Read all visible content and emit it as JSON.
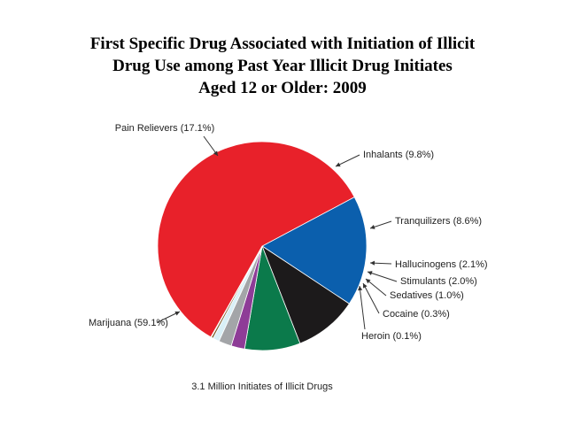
{
  "chart_data": {
    "type": "pie",
    "title_lines": [
      "First Specific Drug Associated with Initiation of Illicit",
      "Drug Use among Past Year Illicit Drug Initiates",
      "Aged 12 or Older: 2009"
    ],
    "caption": "3.1 Million Initiates of Illicit Drugs",
    "slices": [
      {
        "name": "Pain Relievers",
        "value": 17.1,
        "label": "Pain Relievers (17.1%)",
        "color": "#0b5fad"
      },
      {
        "name": "Inhalants",
        "value": 9.8,
        "label": "Inhalants (9.8%)",
        "color": "#1c1a1b"
      },
      {
        "name": "Tranquilizers",
        "value": 8.6,
        "label": "Tranquilizers (8.6%)",
        "color": "#0b7a4b"
      },
      {
        "name": "Hallucinogens",
        "value": 2.1,
        "label": "Hallucinogens (2.1%)",
        "color": "#8e3c97"
      },
      {
        "name": "Stimulants",
        "value": 2.0,
        "label": "Stimulants (2.0%)",
        "color": "#a3a5a8"
      },
      {
        "name": "Sedatives",
        "value": 1.0,
        "label": "Sedatives (1.0%)",
        "color": "#d9f0f7"
      },
      {
        "name": "Cocaine",
        "value": 0.3,
        "label": "Cocaine (0.3%)",
        "color": "#7a5b2a"
      },
      {
        "name": "Heroin",
        "value": 0.1,
        "label": "Heroin (0.1%)",
        "color": "#2b6e3a"
      },
      {
        "name": "Marijuana",
        "value": 59.1,
        "label": "Marijuana (59.1%)",
        "color": "#e8212a"
      }
    ]
  }
}
